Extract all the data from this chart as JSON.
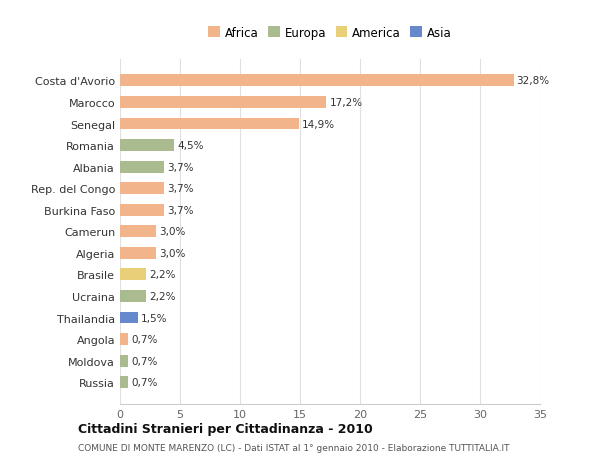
{
  "categories": [
    "Costa d'Avorio",
    "Marocco",
    "Senegal",
    "Romania",
    "Albania",
    "Rep. del Congo",
    "Burkina Faso",
    "Camerun",
    "Algeria",
    "Brasile",
    "Ucraina",
    "Thailandia",
    "Angola",
    "Moldova",
    "Russia"
  ],
  "values": [
    32.8,
    17.2,
    14.9,
    4.5,
    3.7,
    3.7,
    3.7,
    3.0,
    3.0,
    2.2,
    2.2,
    1.5,
    0.7,
    0.7,
    0.7
  ],
  "labels": [
    "32,8%",
    "17,2%",
    "14,9%",
    "4,5%",
    "3,7%",
    "3,7%",
    "3,7%",
    "3,0%",
    "3,0%",
    "2,2%",
    "2,2%",
    "1,5%",
    "0,7%",
    "0,7%",
    "0,7%"
  ],
  "colors": [
    "#F2B48A",
    "#F2B48A",
    "#F2B48A",
    "#AABB90",
    "#AABB90",
    "#F2B48A",
    "#F2B48A",
    "#F2B48A",
    "#F2B48A",
    "#E8CF78",
    "#AABB90",
    "#6688CC",
    "#F2B48A",
    "#AABB90",
    "#AABB90"
  ],
  "legend_labels": [
    "Africa",
    "Europa",
    "America",
    "Asia"
  ],
  "legend_colors": [
    "#F2B48A",
    "#AABB90",
    "#E8CF78",
    "#6688CC"
  ],
  "title": "Cittadini Stranieri per Cittadinanza - 2010",
  "subtitle": "COMUNE DI MONTE MARENZO (LC) - Dati ISTAT al 1° gennaio 2010 - Elaborazione TUTTITALIA.IT",
  "xlim": [
    0,
    35
  ],
  "xticks": [
    0,
    5,
    10,
    15,
    20,
    25,
    30,
    35
  ],
  "background_color": "#ffffff",
  "grid_color": "#e0e0e0"
}
